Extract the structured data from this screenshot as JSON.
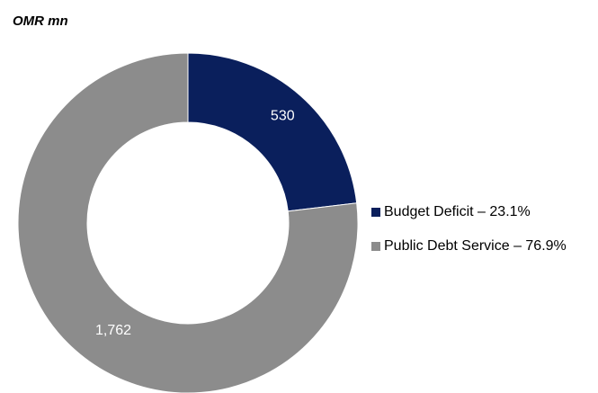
{
  "chart_data": {
    "type": "pie",
    "variant": "donut",
    "unit_label": "OMR mn",
    "categories": [
      "Budget Deficit",
      "Public Debt Service"
    ],
    "values": [
      530,
      1762
    ],
    "value_labels": [
      "530",
      "1,762"
    ],
    "legend_entries": [
      "Budget Deficit – 23.1%",
      "Public Debt Service – 76.9%"
    ],
    "percentages": [
      23.1,
      76.9
    ],
    "colors": [
      "#0a1f5c",
      "#8c8c8c"
    ],
    "legend_position": "right"
  }
}
